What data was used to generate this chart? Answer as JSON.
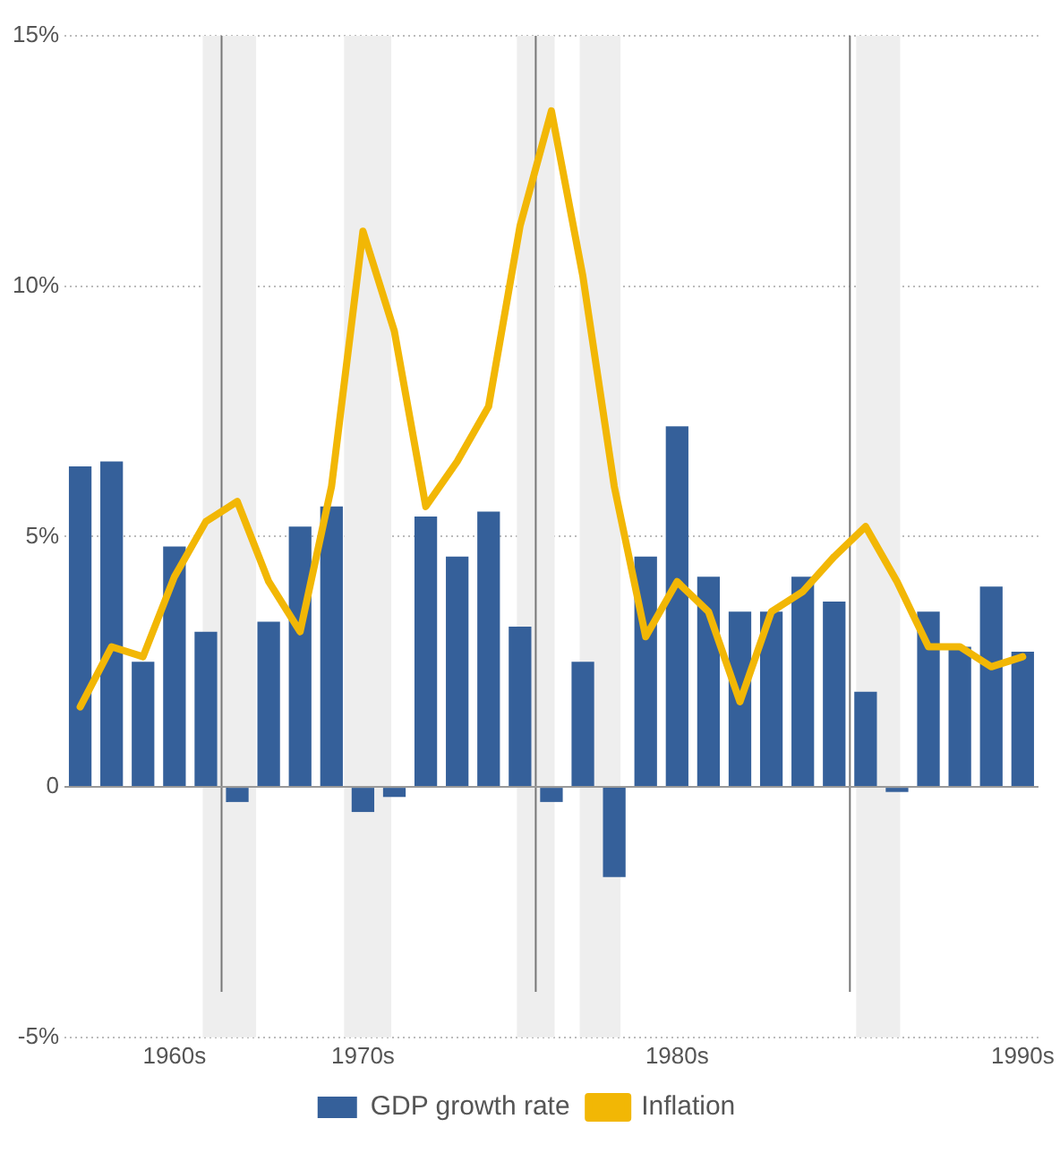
{
  "chart_data": {
    "type": "bar",
    "categories": [
      null,
      null,
      null,
      "1960s",
      null,
      null,
      null,
      null,
      null,
      "1970s",
      null,
      null,
      null,
      null,
      null,
      null,
      null,
      null,
      null,
      "1980s",
      null,
      null,
      null,
      null,
      null,
      null,
      null,
      null,
      null,
      null,
      "1990s"
    ],
    "series": [
      {
        "name": "GDP growth rate",
        "color": "#35609a",
        "values": [
          6.4,
          6.5,
          2.5,
          4.8,
          3.1,
          -0.3,
          3.3,
          5.2,
          5.6,
          -0.5,
          -0.2,
          5.4,
          4.6,
          5.5,
          3.2,
          -0.3,
          2.5,
          -1.8,
          4.6,
          7.2,
          4.2,
          3.5,
          3.5,
          4.2,
          3.7,
          1.9,
          -0.1,
          3.5,
          2.8,
          4.0,
          2.7
        ]
      },
      {
        "name": "Inflation",
        "type": "line",
        "color": "#f2b705",
        "values": [
          1.6,
          2.8,
          2.6,
          4.2,
          5.3,
          5.7,
          4.1,
          3.1,
          6.0,
          11.1,
          9.1,
          5.6,
          6.5,
          7.6,
          11.2,
          13.5,
          10.2,
          6.0,
          3.0,
          4.1,
          3.5,
          1.7,
          3.5,
          3.9,
          4.6,
          5.2,
          4.1,
          2.8,
          2.8,
          2.4,
          2.6
        ]
      }
    ],
    "ylim": [
      -5,
      15
    ],
    "yticks": [
      {
        "value": -5,
        "label": "-5%"
      },
      {
        "value": 0,
        "label": "0"
      },
      {
        "value": 5,
        "label": "5%"
      },
      {
        "value": 10,
        "label": "10%"
      },
      {
        "value": 15,
        "label": "15%"
      }
    ],
    "grid": "y",
    "legend": "bottom",
    "line_style": "solid",
    "ref_lines": [
      {
        "axis": "y",
        "value": 0,
        "color": "#999999"
      }
    ]
  }
}
